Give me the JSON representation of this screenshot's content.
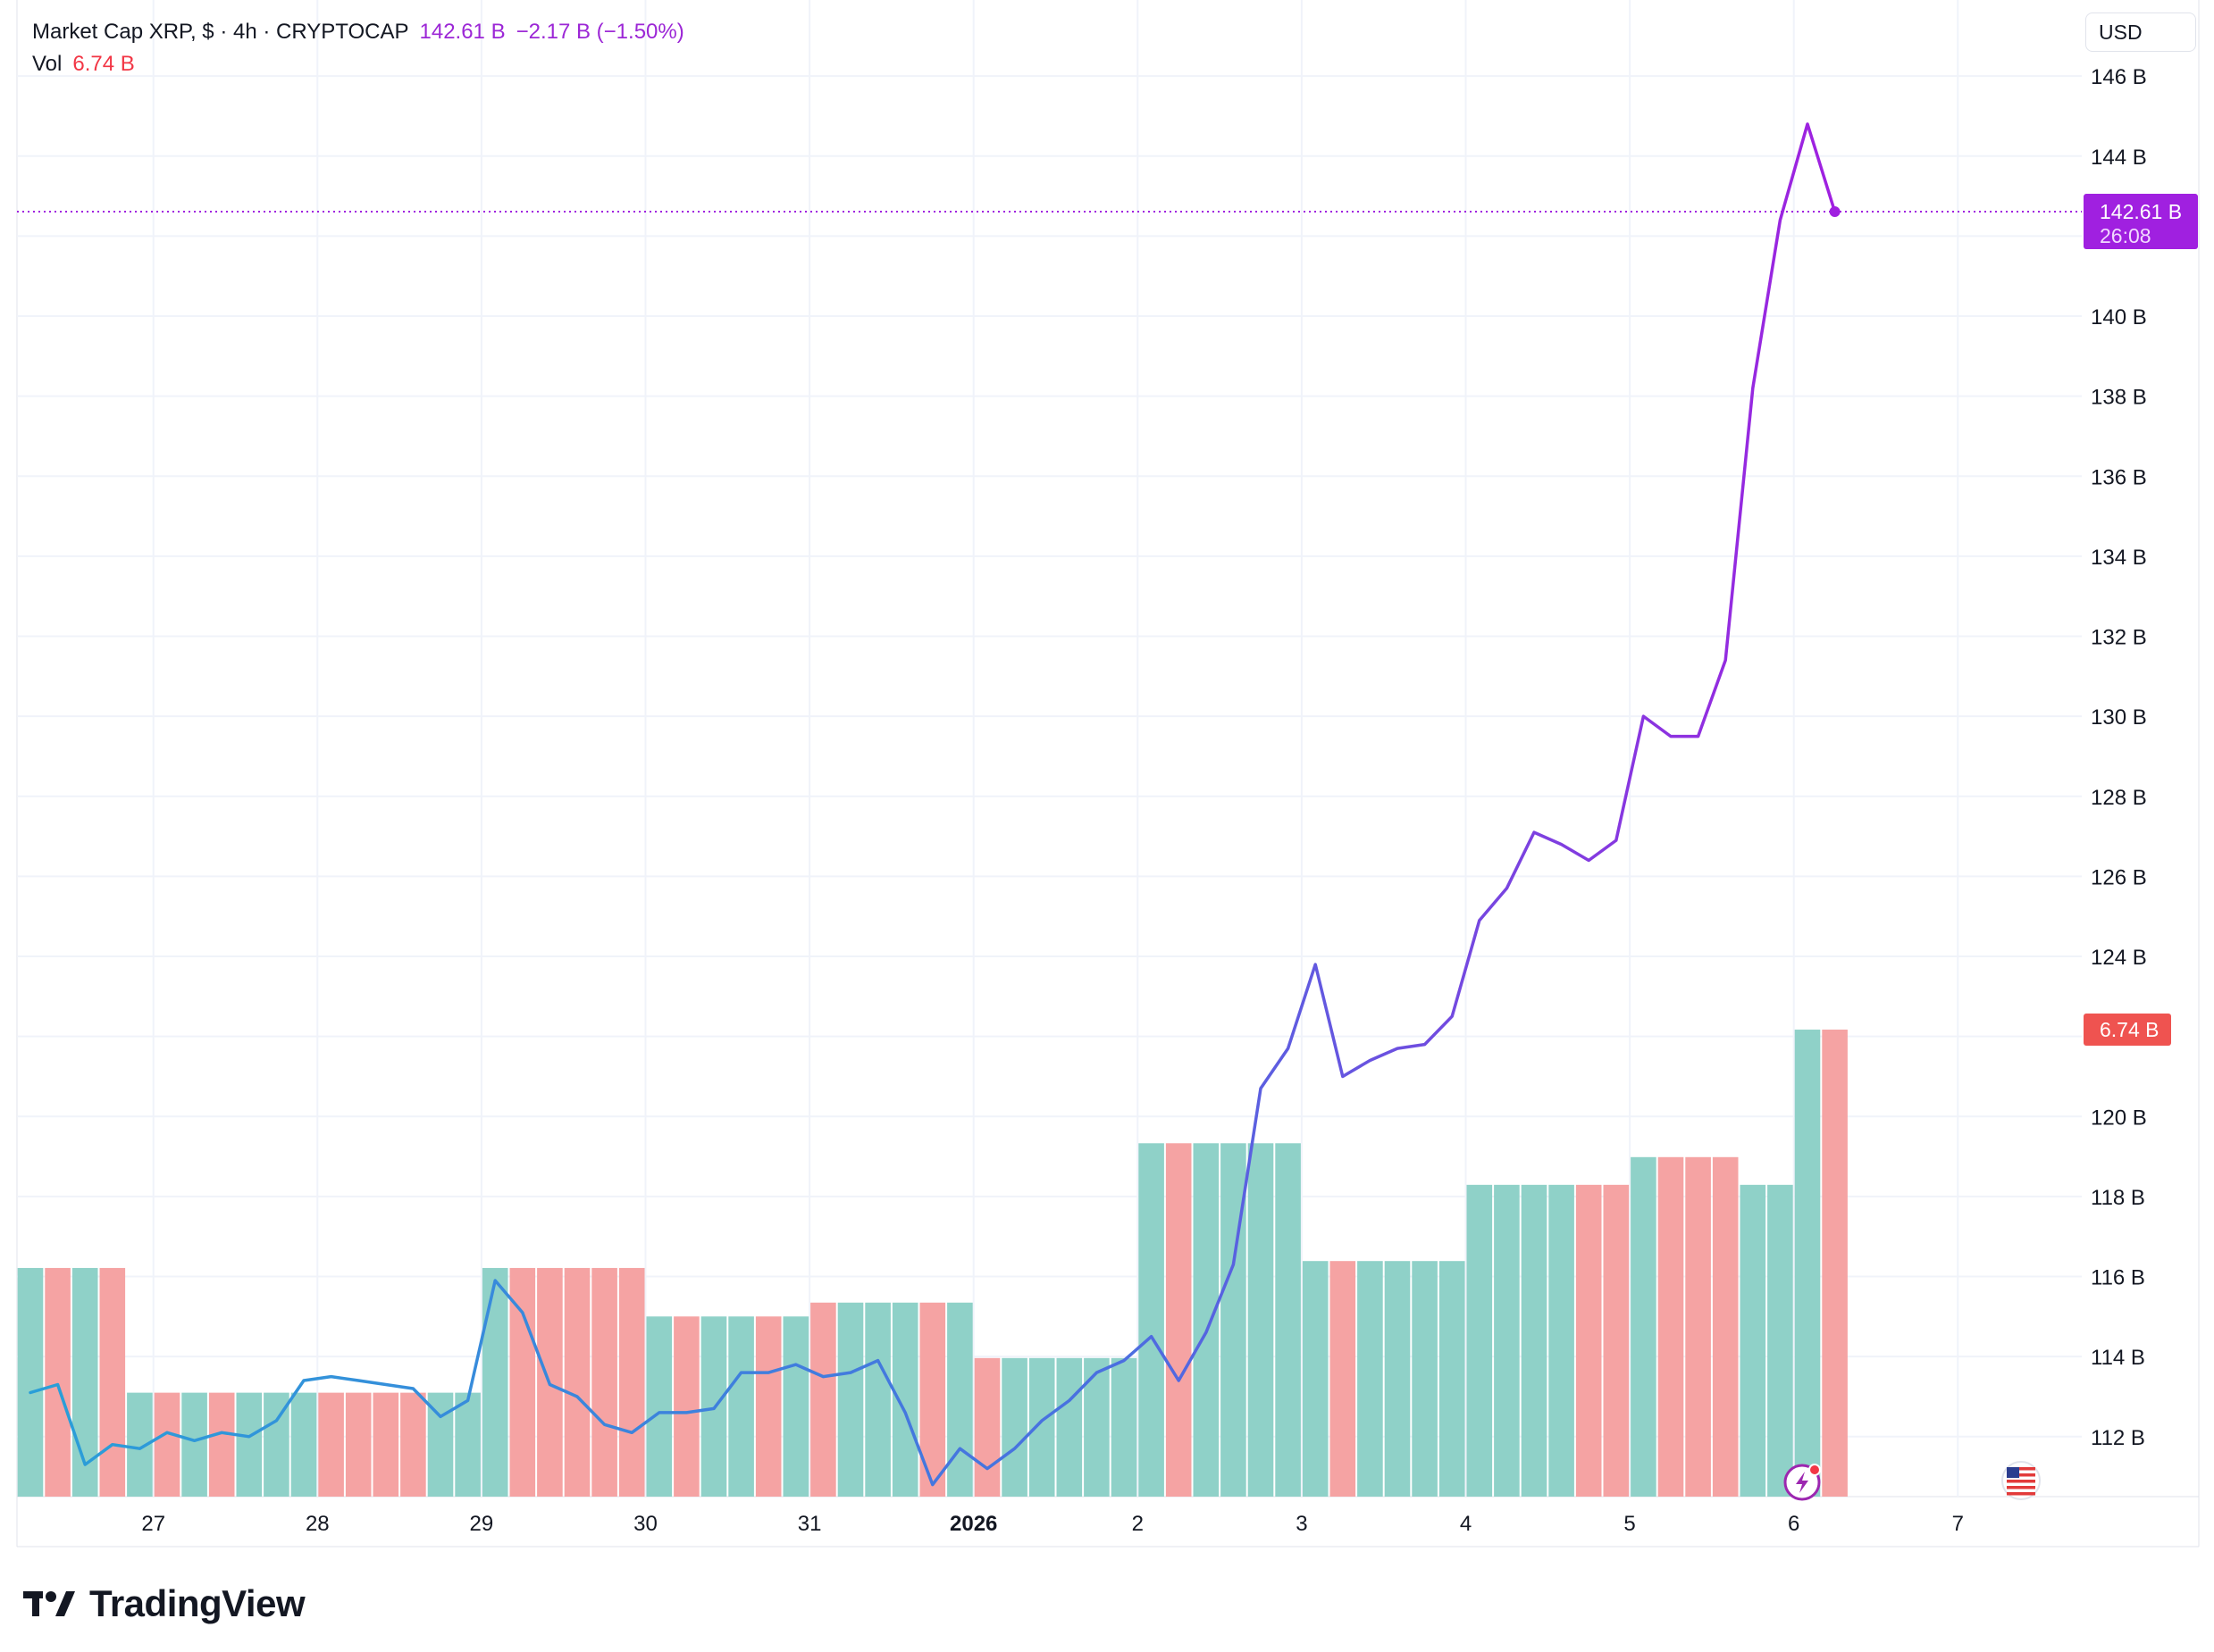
{
  "legend": {
    "symbol": "Market Cap XRP, $ · 4h · CRYPTOCAP",
    "last_value": "142.61 B",
    "change": "−2.17 B (−1.50%)",
    "vol_label": "Vol",
    "vol_value": "6.74 B"
  },
  "toolbar": {
    "currency": "USD"
  },
  "price_badge": {
    "value": "142.61 B",
    "countdown": "26:08"
  },
  "volume_badge": {
    "value": "6.74 B"
  },
  "brand": {
    "name": "TradingView"
  },
  "colors": {
    "line_start": "#2a9fd8",
    "line_mid": "#4a6fe0",
    "line_end": "#a020e0",
    "up_volume": "#8fd1c8",
    "down_volume": "#f5a3a3",
    "price_badge": "#a020e0",
    "volume_badge": "#ef5350",
    "grid": "#f0f3fa"
  },
  "icons": {
    "events": "lightning-icon",
    "flag": "us-flag-icon",
    "logo": "tradingview-logo-icon"
  },
  "chart_data": {
    "type": "line",
    "title": "Market Cap XRP, $ · 4h · CRYPTOCAP",
    "y_unit": "B USD",
    "ylim": [
      110.5,
      147.9
    ],
    "y_ticks": [
      "112 B",
      "114 B",
      "116 B",
      "118 B",
      "120 B",
      "122 B",
      "124 B",
      "126 B",
      "128 B",
      "130 B",
      "132 B",
      "134 B",
      "136 B",
      "138 B",
      "140 B",
      "142 B",
      "144 B",
      "146 B"
    ],
    "x_ticks": [
      {
        "label": "27",
        "i": 4.5
      },
      {
        "label": "28",
        "i": 10.5
      },
      {
        "label": "29",
        "i": 16.5
      },
      {
        "label": "30",
        "i": 22.5
      },
      {
        "label": "31",
        "i": 28.5
      },
      {
        "label": "2026",
        "i": 34.5,
        "bold": true
      },
      {
        "label": "2",
        "i": 40.5
      },
      {
        "label": "3",
        "i": 46.5
      },
      {
        "label": "4",
        "i": 52.5
      },
      {
        "label": "5",
        "i": 58.5
      },
      {
        "label": "6",
        "i": 64.5
      },
      {
        "label": "7",
        "i": 70.5
      }
    ],
    "series": [
      {
        "name": "Market Cap XRP",
        "values": [
          113.1,
          113.3,
          111.3,
          111.8,
          111.7,
          112.1,
          111.9,
          112.1,
          112.0,
          112.4,
          113.4,
          113.5,
          113.4,
          113.3,
          113.2,
          112.5,
          112.9,
          115.9,
          115.1,
          113.3,
          113.0,
          112.3,
          112.1,
          112.6,
          112.6,
          112.7,
          113.6,
          113.6,
          113.8,
          113.5,
          113.6,
          113.9,
          112.6,
          110.8,
          111.7,
          111.2,
          111.7,
          112.4,
          112.9,
          113.6,
          113.9,
          114.5,
          113.4,
          114.6,
          116.3,
          120.7,
          121.7,
          123.8,
          121.0,
          121.4,
          121.7,
          121.8,
          122.5,
          124.9,
          125.7,
          127.1,
          126.8,
          126.4,
          126.9,
          130.0,
          129.5,
          129.5,
          131.4,
          138.2,
          142.4,
          144.8,
          142.61
        ]
      },
      {
        "name": "Vol",
        "values": [
          3.3,
          3.3,
          3.3,
          3.3,
          1.5,
          1.5,
          1.5,
          1.5,
          1.5,
          1.5,
          1.5,
          1.5,
          1.5,
          1.5,
          1.5,
          1.5,
          1.5,
          3.3,
          3.3,
          3.3,
          3.3,
          3.3,
          3.3,
          2.6,
          2.6,
          2.6,
          2.6,
          2.6,
          2.6,
          2.8,
          2.8,
          2.8,
          2.8,
          2.8,
          2.8,
          2.0,
          2.0,
          2.0,
          2.0,
          2.0,
          2.0,
          5.1,
          5.1,
          5.1,
          5.1,
          5.1,
          5.1,
          3.4,
          3.4,
          3.4,
          3.4,
          3.4,
          3.4,
          4.5,
          4.5,
          4.5,
          4.5,
          4.5,
          4.5,
          4.9,
          4.9,
          4.9,
          4.9,
          4.5,
          4.5,
          6.74,
          6.74
        ],
        "direction": [
          "up",
          "down",
          "up",
          "down",
          "up",
          "down",
          "up",
          "down",
          "up",
          "up",
          "up",
          "down",
          "down",
          "down",
          "down",
          "up",
          "up",
          "up",
          "down",
          "down",
          "down",
          "down",
          "down",
          "up",
          "down",
          "up",
          "up",
          "down",
          "up",
          "down",
          "up",
          "up",
          "up",
          "down",
          "up",
          "down",
          "up",
          "up",
          "up",
          "up",
          "up",
          "up",
          "down",
          "up",
          "up",
          "up",
          "up",
          "up",
          "down",
          "up",
          "up",
          "up",
          "up",
          "up",
          "up",
          "up",
          "up",
          "down",
          "down",
          "up",
          "down",
          "down",
          "down",
          "up",
          "up",
          "up",
          "down"
        ],
        "ylim": [
          0,
          21.6
        ]
      }
    ],
    "last_value_line": 142.61
  }
}
